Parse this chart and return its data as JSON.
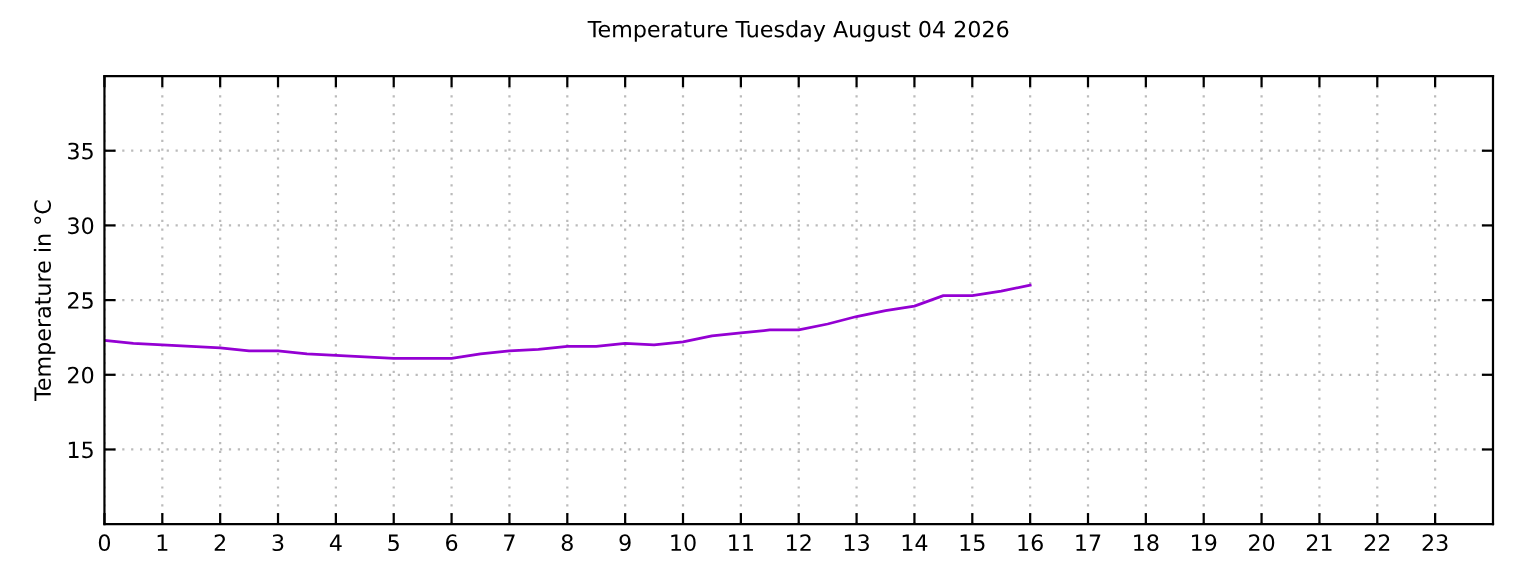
{
  "chart_data": {
    "type": "line",
    "title": "Temperature Tuesday August 04 2026",
    "ylabel": "Temperature in °C",
    "x": [
      0,
      0.5,
      1,
      1.5,
      2,
      2.5,
      3,
      3.5,
      4,
      4.5,
      5,
      5.5,
      6,
      6.5,
      7,
      7.5,
      8,
      8.5,
      9,
      9.5,
      10,
      10.5,
      11,
      11.5,
      12,
      12.5,
      13,
      13.5,
      14,
      14.5,
      15,
      15.5,
      16
    ],
    "series": [
      {
        "color": "#9400d3",
        "values": [
          22.3,
          22.1,
          22.0,
          21.9,
          21.8,
          21.6,
          21.6,
          21.4,
          21.3,
          21.2,
          21.1,
          21.1,
          21.1,
          21.4,
          21.6,
          21.7,
          21.9,
          21.9,
          22.1,
          22.0,
          22.2,
          22.6,
          22.8,
          23.0,
          23.0,
          23.4,
          23.9,
          24.3,
          24.6,
          25.3,
          25.3,
          25.6,
          26.0
        ]
      }
    ],
    "xlim": [
      0,
      24
    ],
    "xticks": [
      0,
      1,
      2,
      3,
      4,
      5,
      6,
      7,
      8,
      9,
      10,
      11,
      12,
      13,
      14,
      15,
      16,
      17,
      18,
      19,
      20,
      21,
      22,
      23
    ],
    "ylim": [
      10,
      40
    ],
    "yticks": [
      15,
      20,
      25,
      30,
      35
    ],
    "grid": true,
    "legend": false
  }
}
